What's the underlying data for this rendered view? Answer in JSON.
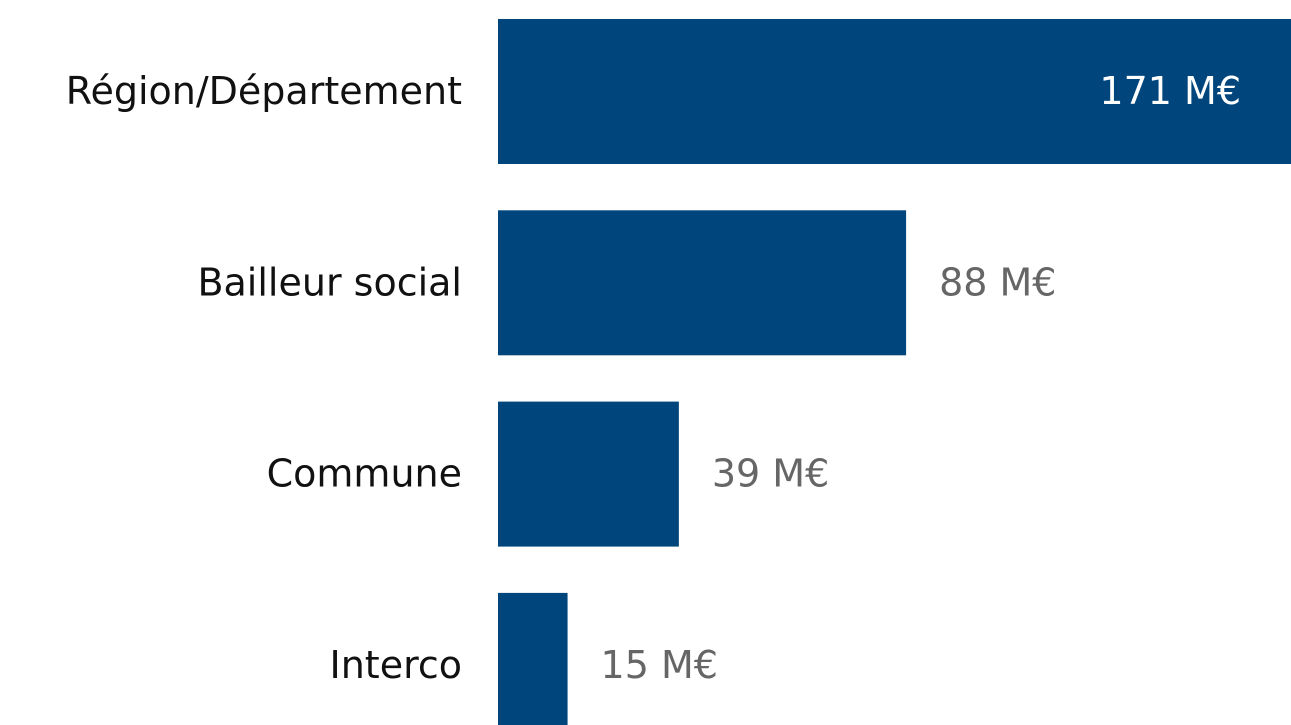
{
  "chart_data": {
    "type": "bar",
    "orientation": "horizontal",
    "categories": [
      "Région/Département",
      "Bailleur social",
      "Commune",
      "Interco"
    ],
    "values": [
      171,
      88,
      39,
      15
    ],
    "value_labels": [
      "171 M€",
      "88 M€",
      "39 M€",
      "15 M€"
    ],
    "color": "#00457c"
  }
}
